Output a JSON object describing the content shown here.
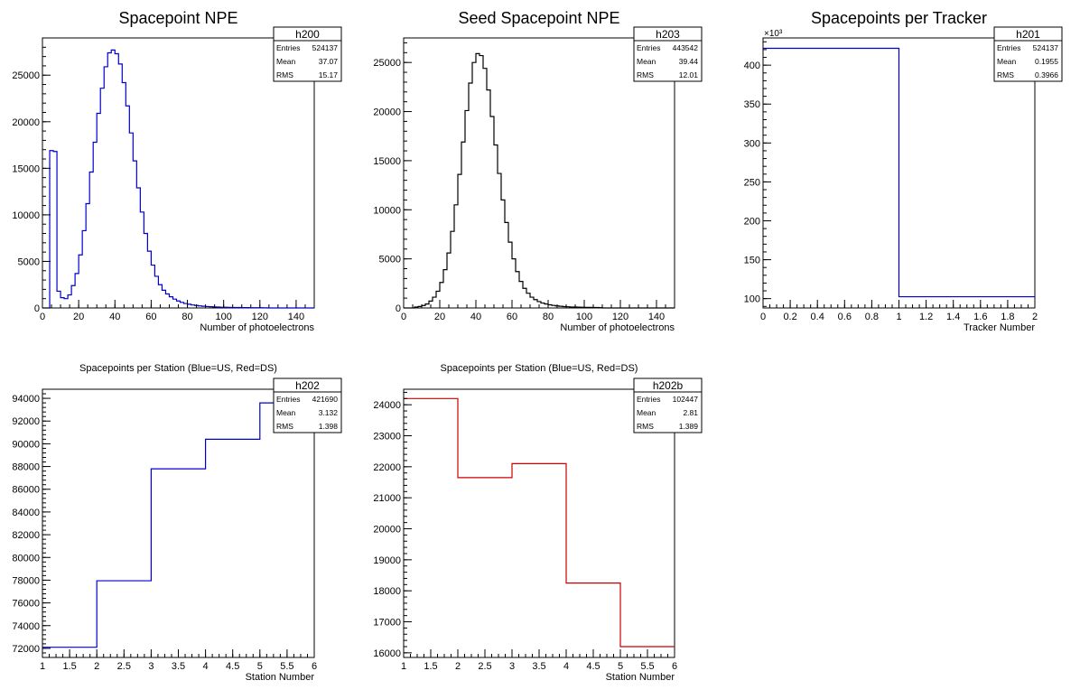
{
  "chart_data": [
    {
      "id": "c_npe",
      "type": "histogram",
      "title": "Spacepoint NPE",
      "title_size": "large",
      "xlabel": "Number of photoelectrons",
      "ylabel": "",
      "xlim": [
        0,
        150
      ],
      "ylim": [
        0,
        29000
      ],
      "x_ticks": [
        0,
        20,
        40,
        60,
        80,
        100,
        120,
        140
      ],
      "x_tick_labels": [
        "0",
        "20",
        "40",
        "60",
        "80",
        "100",
        "120",
        "140"
      ],
      "y_ticks": [
        0,
        5000,
        10000,
        15000,
        20000,
        25000
      ],
      "y_tick_labels": [
        "0",
        "5000",
        "10000",
        "15000",
        "20000",
        "25000"
      ],
      "y_exponent": "",
      "line_color": "#0000cc",
      "bin_edges": [
        0,
        2,
        4,
        6,
        8,
        10,
        12,
        14,
        16,
        18,
        20,
        22,
        24,
        26,
        28,
        30,
        32,
        34,
        36,
        38,
        40,
        42,
        44,
        46,
        48,
        50,
        52,
        54,
        56,
        58,
        60,
        62,
        64,
        66,
        68,
        70,
        72,
        74,
        76,
        78,
        80,
        82,
        84,
        86,
        88,
        90,
        92,
        94,
        96,
        98,
        100,
        102,
        104,
        106,
        108,
        110,
        112,
        114,
        116,
        118,
        120,
        122,
        124,
        126,
        128,
        130,
        132,
        134,
        136,
        138,
        140,
        142,
        144,
        146,
        148,
        150
      ],
      "values": [
        0,
        0,
        16900,
        16800,
        1800,
        1100,
        1000,
        1400,
        2400,
        3700,
        5700,
        8300,
        11200,
        14600,
        17800,
        20900,
        23600,
        25900,
        27400,
        27700,
        27300,
        26200,
        24200,
        21700,
        18800,
        15800,
        12900,
        10300,
        8000,
        6100,
        4600,
        3400,
        2500,
        1900,
        1500,
        1200,
        950,
        750,
        600,
        480,
        400,
        320,
        270,
        220,
        180,
        150,
        130,
        110,
        95,
        80,
        70,
        60,
        55,
        50,
        45,
        40,
        35,
        30,
        28,
        25,
        22,
        20,
        0,
        0,
        0,
        0,
        0,
        0,
        0,
        0,
        0,
        0,
        0,
        0,
        0
      ],
      "stats": {
        "name": "h200",
        "entries": "524137",
        "mean": "37.07",
        "rms": "15.17"
      }
    },
    {
      "id": "c_seed",
      "type": "histogram",
      "title": "Seed Spacepoint NPE",
      "title_size": "large",
      "xlabel": "Number of photoelectrons",
      "ylabel": "",
      "xlim": [
        0,
        150
      ],
      "ylim": [
        0,
        27500
      ],
      "x_ticks": [
        0,
        20,
        40,
        60,
        80,
        100,
        120,
        140
      ],
      "x_tick_labels": [
        "0",
        "20",
        "40",
        "60",
        "80",
        "100",
        "120",
        "140"
      ],
      "y_ticks": [
        0,
        5000,
        10000,
        15000,
        20000,
        25000
      ],
      "y_tick_labels": [
        "0",
        "5000",
        "10000",
        "15000",
        "20000",
        "25000"
      ],
      "y_exponent": "",
      "line_color": "#000000",
      "bin_edges": [
        0,
        2,
        4,
        6,
        8,
        10,
        12,
        14,
        16,
        18,
        20,
        22,
        24,
        26,
        28,
        30,
        32,
        34,
        36,
        38,
        40,
        42,
        44,
        46,
        48,
        50,
        52,
        54,
        56,
        58,
        60,
        62,
        64,
        66,
        68,
        70,
        72,
        74,
        76,
        78,
        80,
        82,
        84,
        86,
        88,
        90,
        92,
        94,
        96,
        98,
        100,
        102,
        104,
        106,
        108,
        110,
        112,
        114,
        116,
        118,
        120,
        122,
        124,
        126,
        128,
        130,
        132,
        134,
        136,
        138,
        140,
        142,
        144,
        146,
        148,
        150
      ],
      "values": [
        0,
        0,
        0,
        100,
        150,
        250,
        400,
        700,
        1100,
        1700,
        2600,
        3900,
        5600,
        7800,
        10500,
        13600,
        16900,
        20100,
        22900,
        25000,
        25900,
        25700,
        24400,
        22200,
        19500,
        16600,
        13700,
        11000,
        8700,
        6700,
        5000,
        3700,
        2700,
        2000,
        1500,
        1100,
        850,
        650,
        500,
        400,
        320,
        260,
        210,
        170,
        140,
        120,
        100,
        90,
        80,
        70,
        60,
        55,
        50,
        45,
        40,
        0,
        0,
        0,
        0,
        0,
        0,
        0,
        0,
        0,
        0,
        0,
        0,
        0,
        0,
        0,
        0,
        0,
        0,
        0,
        0
      ],
      "stats": {
        "name": "h203",
        "entries": "443542",
        "mean": "39.44",
        "rms": "12.01"
      }
    },
    {
      "id": "c_tracker",
      "type": "histogram",
      "title": "Spacepoints per Tracker",
      "title_size": "large",
      "xlabel": "Tracker Number",
      "ylabel": "",
      "xlim": [
        0,
        2
      ],
      "ylim": [
        88,
        435
      ],
      "x_ticks": [
        0,
        0.2,
        0.4,
        0.6,
        0.8,
        1,
        1.2,
        1.4,
        1.6,
        1.8,
        2
      ],
      "x_tick_labels": [
        "0",
        "0.2",
        "0.4",
        "0.6",
        "0.8",
        "1",
        "1.2",
        "1.4",
        "1.6",
        "1.8",
        "2"
      ],
      "y_ticks": [
        100,
        150,
        200,
        250,
        300,
        350,
        400
      ],
      "y_tick_labels": [
        "100",
        "150",
        "200",
        "250",
        "300",
        "350",
        "400"
      ],
      "y_exponent": "×10³",
      "line_color": "#0000cc",
      "bin_edges": [
        0,
        1,
        2
      ],
      "values": [
        421.69,
        102.447
      ],
      "stats": {
        "name": "h201",
        "entries": "524137",
        "mean": "0.1955",
        "rms": "0.3966"
      }
    },
    {
      "id": "c_station_us",
      "type": "histogram",
      "title": "Spacepoints per Station (Blue=US, Red=DS)",
      "title_size": "small",
      "xlabel": "Station Number",
      "ylabel": "",
      "xlim": [
        1,
        6
      ],
      "ylim": [
        71200,
        94800
      ],
      "x_ticks": [
        1,
        1.5,
        2,
        2.5,
        3,
        3.5,
        4,
        4.5,
        5,
        5.5,
        6
      ],
      "x_tick_labels": [
        "1",
        "1.5",
        "2",
        "2.5",
        "3",
        "3.5",
        "4",
        "4.5",
        "5",
        "5.5",
        "6"
      ],
      "y_ticks": [
        72000,
        74000,
        76000,
        78000,
        80000,
        82000,
        84000,
        86000,
        88000,
        90000,
        92000,
        94000
      ],
      "y_tick_labels": [
        "72000",
        "74000",
        "76000",
        "78000",
        "80000",
        "82000",
        "84000",
        "86000",
        "88000",
        "90000",
        "92000",
        "94000"
      ],
      "y_exponent": "",
      "line_color": "#0000cc",
      "bin_edges": [
        1,
        2,
        3,
        4,
        5,
        6
      ],
      "values": [
        72100,
        77950,
        87800,
        90400,
        93600
      ],
      "stats": {
        "name": "h202",
        "entries": "421690",
        "mean": "3.132",
        "rms": "1.398"
      }
    },
    {
      "id": "c_station_ds",
      "type": "histogram",
      "title": "Spacepoints per Station (Blue=US, Red=DS)",
      "title_size": "small",
      "xlabel": "Station Number",
      "ylabel": "",
      "xlim": [
        1,
        6
      ],
      "ylim": [
        15850,
        24500
      ],
      "x_ticks": [
        1,
        1.5,
        2,
        2.5,
        3,
        3.5,
        4,
        4.5,
        5,
        5.5,
        6
      ],
      "x_tick_labels": [
        "1",
        "1.5",
        "2",
        "2.5",
        "3",
        "3.5",
        "4",
        "4.5",
        "5",
        "5.5",
        "6"
      ],
      "y_ticks": [
        16000,
        17000,
        18000,
        19000,
        20000,
        21000,
        22000,
        23000,
        24000
      ],
      "y_tick_labels": [
        "16000",
        "17000",
        "18000",
        "19000",
        "20000",
        "21000",
        "22000",
        "23000",
        "24000"
      ],
      "y_exponent": "",
      "line_color": "#cc0000",
      "bin_edges": [
        1,
        2,
        3,
        4,
        5,
        6
      ],
      "values": [
        24200,
        21650,
        22100,
        18250,
        16200
      ],
      "stats": {
        "name": "h202b",
        "entries": "102447",
        "mean": "2.81",
        "rms": "1.389"
      }
    }
  ],
  "stats_labels": {
    "entries": "Entries",
    "mean": "Mean",
    "rms": "RMS"
  }
}
